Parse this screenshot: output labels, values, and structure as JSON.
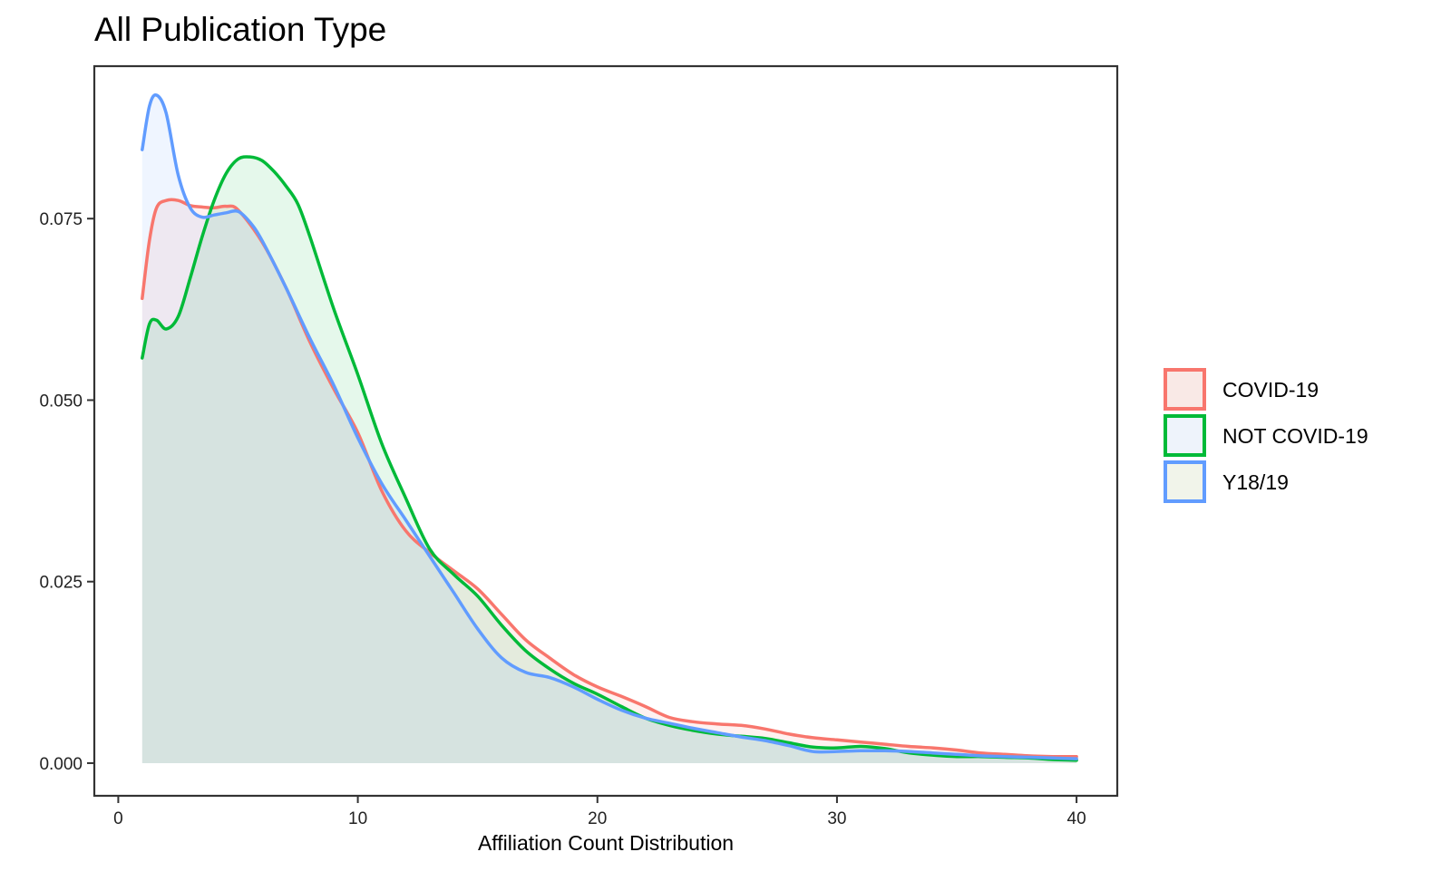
{
  "chart_data": {
    "type": "area",
    "title": "All Publication Type",
    "xlabel": "Affiliation Count Distribution",
    "ylabel": "",
    "xlim": [
      -1,
      41.7
    ],
    "ylim": [
      -0.0045,
      0.096
    ],
    "x_ticks": [
      0,
      10,
      20,
      30,
      40
    ],
    "y_ticks": [
      0.0,
      0.025,
      0.05,
      0.075
    ],
    "x_tick_labels": [
      "0",
      "10",
      "20",
      "30",
      "40"
    ],
    "y_tick_labels": [
      "0.000",
      "0.025",
      "0.050",
      "0.075"
    ],
    "grid": false,
    "legend_position": "right",
    "series": [
      {
        "name": "COVID-19",
        "color": "#F8766D",
        "fill": "#F9E9E6",
        "x": [
          1,
          1.3,
          1.6,
          2,
          2.5,
          3,
          3.5,
          4,
          4.5,
          5,
          6,
          7,
          8,
          9,
          10,
          11,
          12,
          13,
          14,
          15,
          16,
          17,
          18,
          19,
          20,
          21,
          22,
          23,
          24,
          25,
          26,
          27,
          28,
          29,
          30,
          31,
          32,
          33,
          34,
          35,
          36,
          37,
          38,
          39,
          40
        ],
        "values": [
          0.064,
          0.072,
          0.0765,
          0.0775,
          0.0775,
          0.0768,
          0.0766,
          0.0765,
          0.0767,
          0.0762,
          0.0718,
          0.0655,
          0.058,
          0.0515,
          0.0455,
          0.0375,
          0.032,
          0.029,
          0.0265,
          0.024,
          0.0205,
          0.017,
          0.0145,
          0.0122,
          0.0105,
          0.0092,
          0.0078,
          0.0063,
          0.0057,
          0.0054,
          0.0052,
          0.0047,
          0.004,
          0.0035,
          0.0032,
          0.0029,
          0.0026,
          0.0023,
          0.0021,
          0.0018,
          0.0014,
          0.0012,
          0.001,
          0.0009,
          0.0009
        ]
      },
      {
        "name": "NOT COVID-19",
        "color": "#00BA38",
        "fill": "#EEF3FB",
        "x": [
          1,
          1.3,
          1.6,
          2,
          2.5,
          3,
          3.5,
          4,
          4.5,
          5,
          5.5,
          6,
          6.5,
          7,
          7.5,
          8,
          9,
          10,
          11,
          12,
          13,
          14,
          15,
          16,
          17,
          18,
          19,
          20,
          21,
          22,
          23,
          24,
          25,
          26,
          27,
          28,
          29,
          30,
          31,
          32,
          33,
          34,
          35,
          36,
          37,
          38,
          39,
          40
        ],
        "values": [
          0.0558,
          0.0605,
          0.061,
          0.0598,
          0.0615,
          0.0668,
          0.0725,
          0.0775,
          0.0812,
          0.0832,
          0.0835,
          0.083,
          0.0815,
          0.0795,
          0.077,
          0.0725,
          0.0625,
          0.0535,
          0.044,
          0.0365,
          0.0295,
          0.026,
          0.023,
          0.019,
          0.0155,
          0.013,
          0.011,
          0.0095,
          0.0078,
          0.0062,
          0.0052,
          0.0045,
          0.004,
          0.0037,
          0.0034,
          0.0028,
          0.0022,
          0.0021,
          0.0023,
          0.002,
          0.0014,
          0.0011,
          0.0009,
          0.0009,
          0.0008,
          0.0007,
          0.0005,
          0.0004
        ]
      },
      {
        "name": "Y18/19",
        "color": "#619CFF",
        "fill": "#F1F4EA",
        "x": [
          1,
          1.3,
          1.6,
          2,
          2.5,
          3,
          3.5,
          4,
          4.5,
          5,
          5.5,
          6,
          7,
          8,
          9,
          10,
          11,
          12,
          13,
          14,
          15,
          16,
          17,
          18,
          19,
          20,
          21,
          22,
          23,
          24,
          25,
          26,
          27,
          28,
          29,
          30,
          31,
          32,
          33,
          34,
          35,
          36,
          37,
          38,
          39,
          40
        ],
        "values": [
          0.0845,
          0.0905,
          0.092,
          0.0895,
          0.081,
          0.0765,
          0.0752,
          0.0755,
          0.0758,
          0.076,
          0.0745,
          0.072,
          0.0655,
          0.0585,
          0.052,
          0.0448,
          0.0385,
          0.0335,
          0.0285,
          0.0235,
          0.0185,
          0.0145,
          0.0125,
          0.0118,
          0.0105,
          0.0088,
          0.0073,
          0.0062,
          0.0055,
          0.0048,
          0.0042,
          0.0036,
          0.0031,
          0.0024,
          0.0016,
          0.0016,
          0.0017,
          0.0017,
          0.0016,
          0.0014,
          0.0012,
          0.001,
          0.0009,
          0.0008,
          0.0007,
          0.0006
        ]
      }
    ]
  }
}
